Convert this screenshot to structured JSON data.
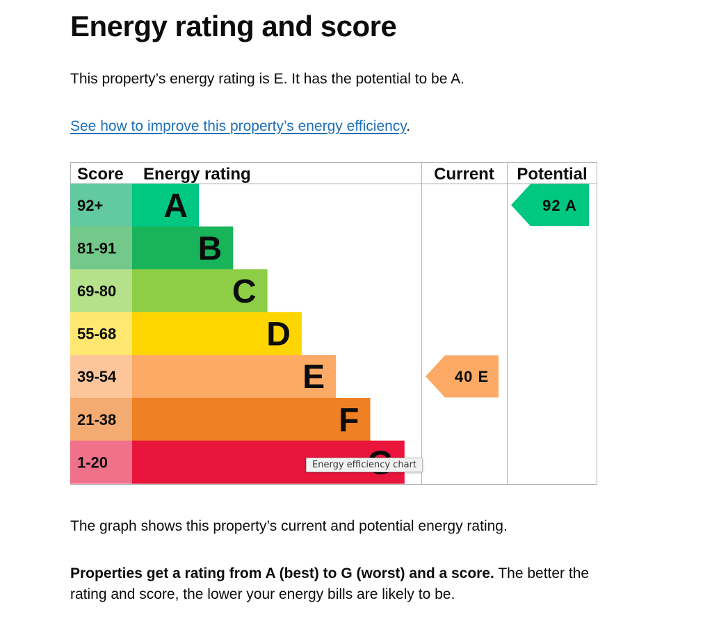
{
  "page": {
    "title": "Energy rating and score",
    "intro": "This property’s energy rating is E. It has the potential to be A.",
    "improve_link": "See how to improve this property’s energy efficiency",
    "improve_link_suffix": ".",
    "graph_description": "The graph shows this property’s current and potential energy rating.",
    "ratings_bold": "Properties get a rating from A (best) to G (worst) and a score.",
    "ratings_rest": " The better the rating and score, the lower your energy bills are likely to be.",
    "tooltip": "Energy efficiency chart"
  },
  "chart_data": {
    "type": "table",
    "title": "Energy efficiency chart",
    "headers": {
      "score": "Score",
      "rating": "Energy rating",
      "current": "Current",
      "potential": "Potential"
    },
    "bands": [
      {
        "letter": "A",
        "range": "92+",
        "bar_color": "#00c781",
        "score_color": "#62c9a0"
      },
      {
        "letter": "B",
        "range": "81-91",
        "bar_color": "#19b459",
        "score_color": "#73c98a"
      },
      {
        "letter": "C",
        "range": "69-80",
        "bar_color": "#8dce46",
        "score_color": "#b6e18b"
      },
      {
        "letter": "D",
        "range": "55-68",
        "bar_color": "#ffd500",
        "score_color": "#ffe770"
      },
      {
        "letter": "E",
        "range": "39-54",
        "bar_color": "#fcaa65",
        "score_color": "#fdc69a"
      },
      {
        "letter": "F",
        "range": "21-38",
        "bar_color": "#ef8023",
        "score_color": "#f4ab71"
      },
      {
        "letter": "G",
        "range": "1-20",
        "bar_color": "#e9153b",
        "score_color": "#f0728a"
      }
    ],
    "current": {
      "score": 40,
      "letter": "E",
      "label": "40 E",
      "color": "#fcaa65"
    },
    "potential": {
      "score": 92,
      "letter": "A",
      "label": "92 A",
      "color": "#00c781"
    }
  }
}
